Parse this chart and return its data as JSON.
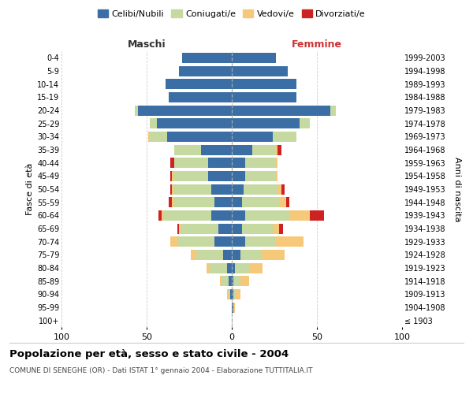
{
  "age_groups": [
    "100+",
    "95-99",
    "90-94",
    "85-89",
    "80-84",
    "75-79",
    "70-74",
    "65-69",
    "60-64",
    "55-59",
    "50-54",
    "45-49",
    "40-44",
    "35-39",
    "30-34",
    "25-29",
    "20-24",
    "15-19",
    "10-14",
    "5-9",
    "0-4"
  ],
  "birth_years": [
    "≤ 1903",
    "1904-1908",
    "1909-1913",
    "1914-1918",
    "1919-1923",
    "1924-1928",
    "1929-1933",
    "1934-1938",
    "1939-1943",
    "1944-1948",
    "1949-1953",
    "1954-1958",
    "1959-1963",
    "1964-1968",
    "1969-1973",
    "1974-1978",
    "1979-1983",
    "1984-1988",
    "1989-1993",
    "1994-1998",
    "1999-2003"
  ],
  "males": {
    "celibi": [
      0,
      0,
      1,
      2,
      3,
      5,
      10,
      8,
      12,
      10,
      12,
      14,
      14,
      18,
      38,
      44,
      55,
      37,
      39,
      31,
      29
    ],
    "coniugati": [
      0,
      0,
      1,
      4,
      10,
      16,
      22,
      22,
      28,
      24,
      22,
      20,
      20,
      16,
      10,
      4,
      2,
      0,
      0,
      0,
      0
    ],
    "vedovi": [
      0,
      0,
      1,
      1,
      2,
      3,
      4,
      1,
      1,
      1,
      1,
      1,
      0,
      0,
      1,
      0,
      0,
      0,
      0,
      0,
      0
    ],
    "divorziati": [
      0,
      0,
      0,
      0,
      0,
      0,
      0,
      1,
      2,
      2,
      1,
      1,
      2,
      0,
      0,
      0,
      0,
      0,
      0,
      0,
      0
    ]
  },
  "females": {
    "nubili": [
      0,
      1,
      1,
      1,
      2,
      5,
      8,
      6,
      8,
      6,
      7,
      8,
      8,
      12,
      24,
      40,
      58,
      38,
      38,
      33,
      26
    ],
    "coniugate": [
      0,
      0,
      1,
      4,
      8,
      12,
      18,
      18,
      26,
      22,
      20,
      18,
      18,
      14,
      14,
      6,
      3,
      0,
      0,
      0,
      0
    ],
    "vedove": [
      0,
      1,
      3,
      5,
      8,
      14,
      16,
      4,
      12,
      4,
      2,
      1,
      1,
      1,
      0,
      0,
      0,
      0,
      0,
      0,
      0
    ],
    "divorziate": [
      0,
      0,
      0,
      0,
      0,
      0,
      0,
      2,
      8,
      2,
      2,
      0,
      0,
      2,
      0,
      0,
      0,
      0,
      0,
      0,
      0
    ]
  },
  "colors": {
    "celibi": "#3a6ea5",
    "coniugati": "#c5d9a0",
    "vedovi": "#f5c87a",
    "divorziati": "#cc2222"
  },
  "title": "Popolazione per età, sesso e stato civile - 2004",
  "subtitle": "COMUNE DI SENEGHE (OR) - Dati ISTAT 1° gennaio 2004 - Elaborazione TUTTITALIA.IT",
  "xlabel_left": "Maschi",
  "xlabel_right": "Femmine",
  "ylabel_left": "Fasce di età",
  "ylabel_right": "Anni di nascita",
  "xlim": 100,
  "background_color": "#ffffff",
  "grid_color": "#cccccc",
  "legend_labels": [
    "Celibi/Nubili",
    "Coniugati/e",
    "Vedovi/e",
    "Divorziati/e"
  ]
}
